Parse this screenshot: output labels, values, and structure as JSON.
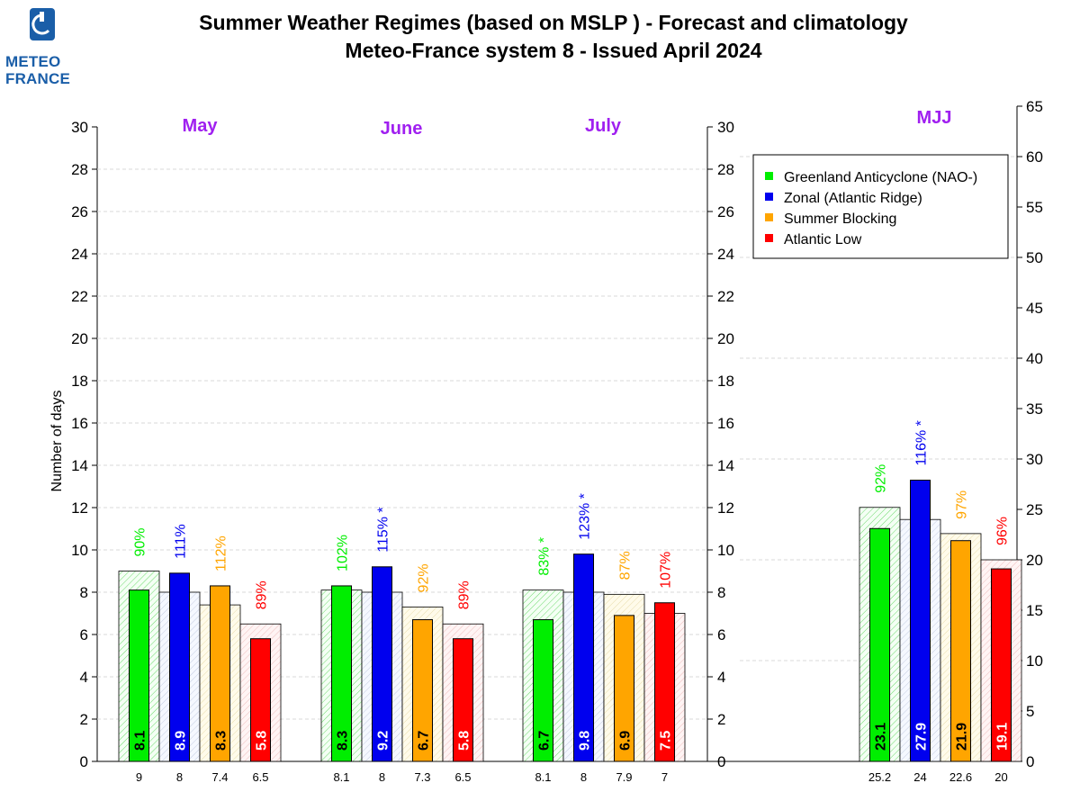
{
  "logo": {
    "line1": "METEO",
    "line2": "FRANCE"
  },
  "header": {
    "title_line1": "Summer Weather Regimes (based on MSLP )  -  Forecast and climatology",
    "title_line2": "Meteo-France system 8   -   Issued April 2024"
  },
  "colors": {
    "Greenland Anticyclone (NAO-)": "#00ee00",
    "Zonal (Atlantic Ridge)": "#0000ee",
    "Summer Blocking": "#ffa500",
    "Atlantic Low": "#ff0000",
    "panel_title": "#a020f0"
  },
  "chart_data": [
    {
      "type": "bar",
      "title": "May",
      "ylabel": "Number of days",
      "ylim": [
        0,
        30
      ],
      "yticks": [
        0,
        2,
        4,
        6,
        8,
        10,
        12,
        14,
        16,
        18,
        20,
        22,
        24,
        26,
        28,
        30
      ],
      "categories": [
        "9",
        "8",
        "7.4",
        "6.5"
      ],
      "series": [
        {
          "name": "Forecast",
          "values": [
            8.1,
            8.9,
            8.3,
            5.8
          ]
        },
        {
          "name": "Climatology",
          "values": [
            9,
            8,
            7.4,
            6.5
          ]
        }
      ],
      "percent_labels": [
        "90%",
        "111%",
        "112%",
        "89%"
      ]
    },
    {
      "type": "bar",
      "title": "June",
      "ylim": [
        0,
        30
      ],
      "categories": [
        "8.1",
        "8",
        "7.3",
        "6.5"
      ],
      "series": [
        {
          "name": "Forecast",
          "values": [
            8.3,
            9.2,
            6.7,
            5.8
          ]
        },
        {
          "name": "Climatology",
          "values": [
            8.1,
            8,
            7.3,
            6.5
          ]
        }
      ],
      "percent_labels": [
        "102%",
        "115% *",
        "92%",
        "89%"
      ]
    },
    {
      "type": "bar",
      "title": "July",
      "ylim": [
        0,
        30
      ],
      "yticks": [
        0,
        2,
        4,
        6,
        8,
        10,
        12,
        14,
        16,
        18,
        20,
        22,
        24,
        26,
        28,
        30
      ],
      "categories": [
        "8.1",
        "8",
        "7.9",
        "7"
      ],
      "series": [
        {
          "name": "Forecast",
          "values": [
            6.7,
            9.8,
            6.9,
            7.5
          ]
        },
        {
          "name": "Climatology",
          "values": [
            8.1,
            8,
            7.9,
            7
          ]
        }
      ],
      "percent_labels": [
        "83% *",
        "123% *",
        "87%",
        "107%"
      ]
    },
    {
      "type": "bar",
      "title": "MJJ",
      "ylim": [
        0,
        65
      ],
      "yticks": [
        0,
        5,
        10,
        15,
        20,
        25,
        30,
        35,
        40,
        45,
        50,
        55,
        60,
        65
      ],
      "categories": [
        "25.2",
        "24",
        "22.6",
        "20"
      ],
      "series": [
        {
          "name": "Forecast",
          "values": [
            23.1,
            27.9,
            21.9,
            19.1
          ]
        },
        {
          "name": "Climatology",
          "values": [
            25.2,
            24,
            22.6,
            20
          ]
        }
      ],
      "percent_labels": [
        "92%",
        "116% *",
        "97%",
        "96%"
      ],
      "legend": {
        "position": "top-right",
        "entries": [
          "Greenland Anticyclone (NAO-)",
          "Zonal (Atlantic Ridge)",
          "Summer Blocking",
          "Atlantic Low"
        ]
      }
    }
  ]
}
